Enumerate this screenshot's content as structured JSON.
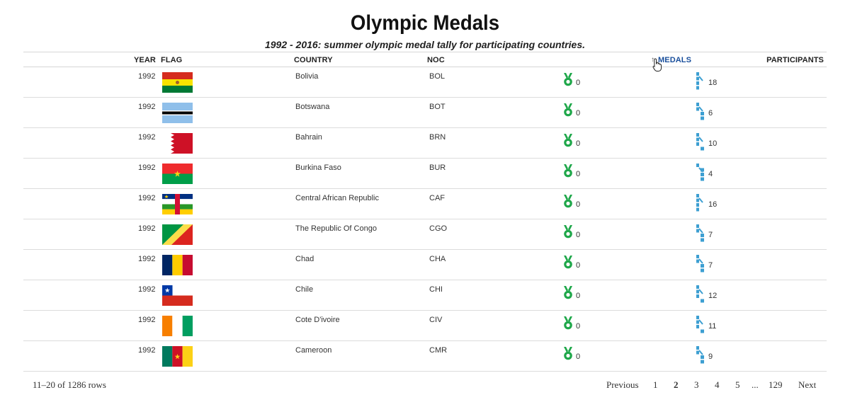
{
  "title": "Olympic Medals",
  "subtitle": "1992 - 2016: summer olympic medal tally for participating countries.",
  "columns": {
    "year": "YEAR",
    "flag": "FLAG",
    "country": "COUNTRY",
    "noc": "NOC",
    "medals": "MEDALS",
    "participants": "PARTICIPANTS"
  },
  "sort": {
    "column": "medals",
    "icon": "sort-caret-icon"
  },
  "colors": {
    "medal_green": "#1fa74a",
    "participant_blue": "#3d9fd2",
    "header_link": "#1a4f9c"
  },
  "rows": [
    {
      "year": "1992",
      "flag": "bolivia",
      "country": "Bolivia",
      "noc": "BOL",
      "medals": "0",
      "participants": "18"
    },
    {
      "year": "1992",
      "flag": "botswana",
      "country": "Botswana",
      "noc": "BOT",
      "medals": "0",
      "participants": "6"
    },
    {
      "year": "1992",
      "flag": "bahrain",
      "country": "Bahrain",
      "noc": "BRN",
      "medals": "0",
      "participants": "10"
    },
    {
      "year": "1992",
      "flag": "burkina-faso",
      "country": "Burkina Faso",
      "noc": "BUR",
      "medals": "0",
      "participants": "4"
    },
    {
      "year": "1992",
      "flag": "central-african-republic",
      "country": "Central African Republic",
      "noc": "CAF",
      "medals": "0",
      "participants": "16"
    },
    {
      "year": "1992",
      "flag": "congo",
      "country": "The Republic Of Congo",
      "noc": "CGO",
      "medals": "0",
      "participants": "7"
    },
    {
      "year": "1992",
      "flag": "chad",
      "country": "Chad",
      "noc": "CHA",
      "medals": "0",
      "participants": "7"
    },
    {
      "year": "1992",
      "flag": "chile",
      "country": "Chile",
      "noc": "CHI",
      "medals": "0",
      "participants": "12"
    },
    {
      "year": "1992",
      "flag": "cote-divoire",
      "country": "Cote D'ivoire",
      "noc": "CIV",
      "medals": "0",
      "participants": "11"
    },
    {
      "year": "1992",
      "flag": "cameroon",
      "country": "Cameroon",
      "noc": "CMR",
      "medals": "0",
      "participants": "9"
    }
  ],
  "footer": {
    "range": "11–20 of 1286 rows",
    "previous": "Previous",
    "pages": [
      "1",
      "2",
      "3",
      "4",
      "5",
      "...",
      "129"
    ],
    "current_page": "2",
    "next": "Next"
  }
}
